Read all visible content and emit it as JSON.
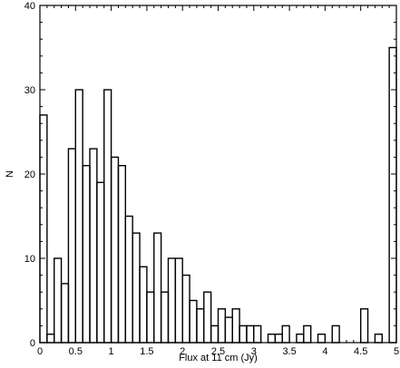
{
  "chart_data": {
    "type": "bar",
    "title": "",
    "xlabel": "Flux at 11 cm (Jy)",
    "ylabel": "N",
    "xlim": [
      0,
      5
    ],
    "ylim": [
      0,
      40
    ],
    "grid": false,
    "bin_width": 0.1,
    "x_bin_starts": [
      0.0,
      0.1,
      0.2,
      0.3,
      0.4,
      0.5,
      0.6,
      0.7,
      0.8,
      0.9,
      1.0,
      1.1,
      1.2,
      1.3,
      1.4,
      1.5,
      1.6,
      1.7,
      1.8,
      1.9,
      2.0,
      2.1,
      2.2,
      2.3,
      2.4,
      2.5,
      2.6,
      2.7,
      2.8,
      2.9,
      3.0,
      3.1,
      3.2,
      3.3,
      3.4,
      3.5,
      3.6,
      3.7,
      3.8,
      3.9,
      4.0,
      4.1,
      4.2,
      4.3,
      4.4,
      4.5,
      4.6,
      4.7,
      4.8,
      4.9
    ],
    "values": [
      27,
      1,
      10,
      7,
      23,
      30,
      21,
      23,
      19,
      30,
      22,
      21,
      15,
      13,
      9,
      6,
      13,
      6,
      10,
      10,
      8,
      5,
      4,
      6,
      2,
      4,
      3,
      4,
      2,
      2,
      2,
      0,
      1,
      1,
      2,
      0,
      1,
      2,
      0,
      1,
      0,
      2,
      0,
      0,
      0,
      4,
      0,
      1,
      0,
      35
    ],
    "x_ticks": [
      "0",
      "0.5",
      "1",
      "1.5",
      "2",
      "2.5",
      "3",
      "3.5",
      "4",
      "4.5",
      "5"
    ],
    "y_ticks": [
      "0",
      "10",
      "20",
      "30",
      "40"
    ]
  }
}
